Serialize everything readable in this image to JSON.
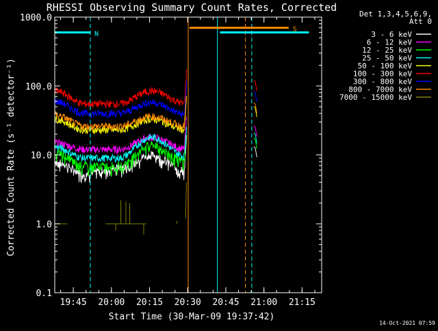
{
  "chart_data": {
    "type": "line",
    "title": "RHESSI Observing Summary Count Rates, Corrected",
    "xlabel": "Start Time (30-Mar-09 19:37:42)",
    "ylabel": "Corrected Count Rate (s⁻¹ detector⁻¹)",
    "yscale": "log",
    "ylim": [
      0.1,
      1000
    ],
    "xlim_minutes_since_start": [
      0,
      105
    ],
    "y_ticks": [
      "0.1",
      "1.0",
      "10.0",
      "100.0",
      "1000.0"
    ],
    "x_ticks": [
      {
        "label": "19:45",
        "t": 7.3
      },
      {
        "label": "20:00",
        "t": 22.3
      },
      {
        "label": "20:15",
        "t": 37.3
      },
      {
        "label": "20:30",
        "t": 52.3
      },
      {
        "label": "20:45",
        "t": 67.3
      },
      {
        "label": "21:00",
        "t": 82.3
      },
      {
        "label": "21:15",
        "t": 97.3
      }
    ],
    "legend_header": [
      "Det 1,3,4,5,6,9,",
      "Att 0"
    ],
    "legend_position": "top-right",
    "series": [
      {
        "name": "3 - 6 keV",
        "color": "#ffffff",
        "levels": [
          8.0,
          5.5,
          6.5,
          10.0,
          6.0
        ]
      },
      {
        "name": "6 - 12 keV",
        "color": "#ff00ff",
        "levels": [
          15.0,
          12.0,
          12.0,
          18.0,
          12.0
        ]
      },
      {
        "name": "12 - 25 keV",
        "color": "#00ff00",
        "levels": [
          11.0,
          7.0,
          7.0,
          14.0,
          8.0
        ]
      },
      {
        "name": "25 - 50 keV",
        "color": "#00ffff",
        "levels": [
          13.0,
          9.0,
          9.0,
          18.0,
          9.5
        ]
      },
      {
        "name": "50 - 100 keV",
        "color": "#ffff00",
        "levels": [
          33.0,
          23.0,
          23.0,
          33.0,
          23.0
        ]
      },
      {
        "name": "100 - 300 keV",
        "color": "#ff0000",
        "levels": [
          85.0,
          55.0,
          55.0,
          85.0,
          55.0
        ]
      },
      {
        "name": "300 - 800 keV",
        "color": "#0000ff",
        "levels": [
          60.0,
          40.0,
          40.0,
          58.0,
          38.0
        ]
      },
      {
        "name": "800 - 7000 keV",
        "color": "#ff8c00",
        "levels": [
          38.0,
          26.0,
          26.0,
          36.0,
          26.0
        ]
      },
      {
        "name": "7000 - 15000 keV",
        "color": "#808000",
        "levels": [
          1.0,
          1.0,
          1.0,
          1.0,
          1.0
        ]
      }
    ],
    "level_times_minutes": [
      0,
      12,
      25,
      38,
      52
    ],
    "markers": [
      {
        "label": "N",
        "color": "#00ffff",
        "t_start": 0,
        "t_end": 14,
        "value": 600
      },
      {
        "label": "S",
        "color": "#ff8c00",
        "t_start": 53,
        "t_end": 92,
        "value": 700
      },
      {
        "label": "",
        "color": "#00ffff",
        "t_start": 65,
        "t_end": 100,
        "value": 600
      }
    ],
    "vertical_lines": [
      {
        "t": 0,
        "color": "#00ffff",
        "dashed": false
      },
      {
        "t": 14,
        "color": "#00ffff",
        "dashed": true
      },
      {
        "t": 52.5,
        "color": "#ff8c00",
        "dashed": false
      },
      {
        "t": 64,
        "color": "#00ffff",
        "dashed": false
      },
      {
        "t": 75,
        "color": "#ff8c00",
        "dashed": true
      },
      {
        "t": 77.5,
        "color": "#00ffff",
        "dashed": true
      }
    ],
    "timestamp": "14-Oct-2021 07:59"
  }
}
